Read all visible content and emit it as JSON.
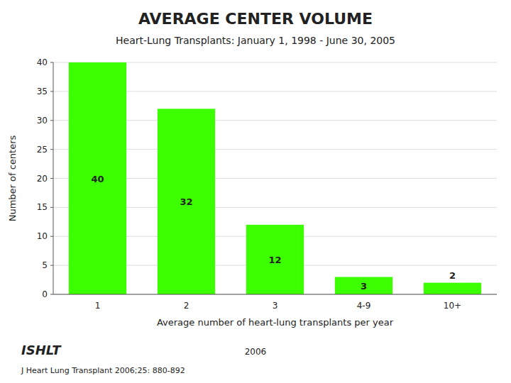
{
  "chart_data": {
    "type": "bar",
    "title": "AVERAGE CENTER VOLUME",
    "subtitle": "Heart-Lung Transplants: January 1, 1998 - June 30, 2005",
    "categories": [
      "1",
      "2",
      "3",
      "4-9",
      "10+"
    ],
    "values": [
      40,
      32,
      12,
      3,
      2
    ],
    "color": "#3cff00",
    "xlabel": "Average number of heart-lung transplants per year",
    "ylabel": "Number of centers",
    "ylim": [
      0,
      40
    ],
    "yticks": [
      0,
      5,
      10,
      15,
      20,
      25,
      30,
      35,
      40
    ],
    "grid": true,
    "data_labels": true,
    "annotations": [
      "ISHLT",
      "2006",
      "J Heart Lung Transplant 2006;25: 880-892"
    ]
  }
}
